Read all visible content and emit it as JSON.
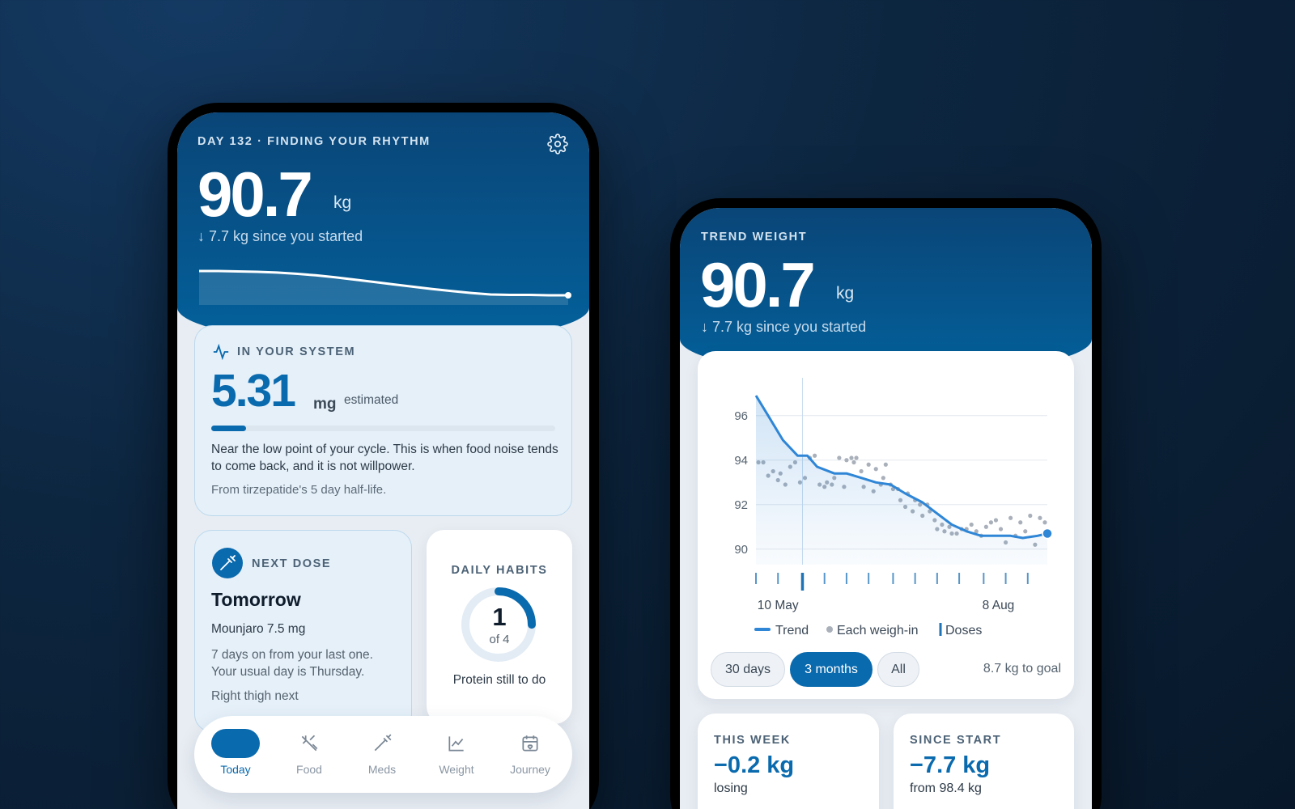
{
  "left_phone": {
    "header": {
      "eyebrow": "DAY 132 · FINDING YOUR RHYTHM",
      "weight": 90.7,
      "unit": "kg",
      "change": "↓ 7.7 kg since you started",
      "sparkline": [
        96.9,
        96.9,
        96.8,
        96.7,
        96.5,
        96.2,
        95.8,
        95.3,
        94.7,
        94.1,
        93.5,
        92.9,
        92.3,
        91.8,
        91.3,
        90.9,
        90.8,
        90.8,
        90.7,
        90.7
      ]
    },
    "system_card": {
      "title": "IN YOUR SYSTEM",
      "amount": 5.31,
      "unit": "mg",
      "qualifier": "estimated",
      "body": "Near the low point of your cycle. This is when food noise tends to come back, and it is not willpower.",
      "footnote": "From tirzepatide's 5 day half-life."
    },
    "dose_card": {
      "title": "NEXT DOSE",
      "when": "Tomorrow",
      "drug": "Mounjaro 7.5 mg",
      "body": "7 days on from your last one. Your usual day is Thursday.",
      "site": "Right thigh next"
    },
    "habits_card": {
      "title": "DAILY HABITS",
      "done": 1,
      "total": {
        "value": 4,
        "label": "of 4"
      },
      "note": "Protein still to do"
    },
    "nav": [
      {
        "label": "Today",
        "active": true
      },
      {
        "label": "Food"
      },
      {
        "label": "Meds"
      },
      {
        "label": "Weight"
      },
      {
        "label": "Journey"
      }
    ]
  },
  "right_phone": {
    "header": {
      "eyebrow": "TREND WEIGHT",
      "weight": 90.7,
      "unit": "kg",
      "change": "↓ 7.7 kg since you started"
    },
    "chart_data": {
      "type": "line",
      "grid": true,
      "xlim": [
        0,
        119
      ],
      "xticks": [
        {
          "value": 9,
          "label": "10 May"
        },
        {
          "value": 99,
          "label": "8 Aug"
        }
      ],
      "ylim": [
        89.3,
        97.7
      ],
      "yticks": [
        90,
        92,
        94,
        96
      ],
      "crosshair_x": 19,
      "series": [
        {
          "name": "Trend",
          "color": "#2f86d6",
          "style": "line",
          "x": [
            0,
            5,
            11,
            17,
            21,
            25,
            32,
            37,
            43,
            49,
            55,
            61,
            68,
            74,
            80,
            86,
            92,
            98,
            104,
            109,
            115,
            119
          ],
          "values": [
            96.9,
            96.0,
            94.9,
            94.2,
            94.2,
            93.7,
            93.4,
            93.4,
            93.2,
            93.0,
            92.9,
            92.5,
            92.1,
            91.6,
            91.1,
            90.8,
            90.6,
            90.6,
            90.6,
            90.5,
            90.6,
            90.7
          ]
        },
        {
          "name": "Each weigh-in",
          "color": "#a9b0ba",
          "style": "dots",
          "x": [
            1,
            3,
            5,
            7,
            9,
            10,
            12,
            14,
            16,
            18,
            20,
            22,
            24,
            26,
            28,
            29,
            31,
            32,
            34,
            36,
            37,
            39,
            40,
            41,
            43,
            44,
            46,
            48,
            49,
            51,
            52,
            53,
            55,
            56,
            58,
            59,
            61,
            62,
            64,
            65,
            67,
            68,
            70,
            71,
            73,
            74,
            76,
            77,
            79,
            80,
            82,
            84,
            86,
            88,
            90,
            92,
            94,
            96,
            98,
            100,
            102,
            104,
            106,
            108,
            110,
            112,
            114,
            116,
            118
          ],
          "values": [
            93.9,
            93.9,
            93.3,
            93.5,
            93.1,
            93.4,
            92.9,
            93.7,
            93.9,
            93.0,
            93.2,
            94.1,
            94.2,
            92.9,
            92.8,
            93.0,
            92.9,
            93.2,
            94.1,
            92.8,
            94.0,
            94.1,
            93.9,
            94.1,
            93.5,
            92.8,
            93.8,
            92.6,
            93.6,
            92.9,
            93.2,
            93.8,
            92.9,
            92.7,
            92.7,
            92.2,
            91.9,
            92.5,
            91.7,
            92.2,
            92.0,
            91.5,
            92.0,
            91.7,
            91.3,
            90.9,
            91.1,
            90.8,
            91.0,
            90.7,
            90.7,
            90.9,
            90.9,
            91.1,
            90.8,
            90.6,
            91.0,
            91.2,
            91.3,
            90.9,
            90.3,
            91.4,
            90.6,
            91.2,
            90.8,
            91.5,
            90.2,
            91.4,
            91.2
          ]
        }
      ],
      "doses": {
        "name": "Doses",
        "color": "#1f73b7",
        "x": [
          0,
          9,
          19,
          28,
          37,
          46,
          56,
          65,
          74,
          83,
          93,
          102,
          111
        ]
      }
    },
    "ranges": [
      {
        "label": "30 days"
      },
      {
        "label": "3 months",
        "active": true
      },
      {
        "label": "All"
      }
    ],
    "goal": "8.7 kg to goal",
    "stats": [
      {
        "title": "THIS WEEK",
        "value": "−0.2 kg",
        "note": "losing"
      },
      {
        "title": "SINCE START",
        "value": "−7.7 kg",
        "note": "from 98.4 kg"
      }
    ]
  }
}
